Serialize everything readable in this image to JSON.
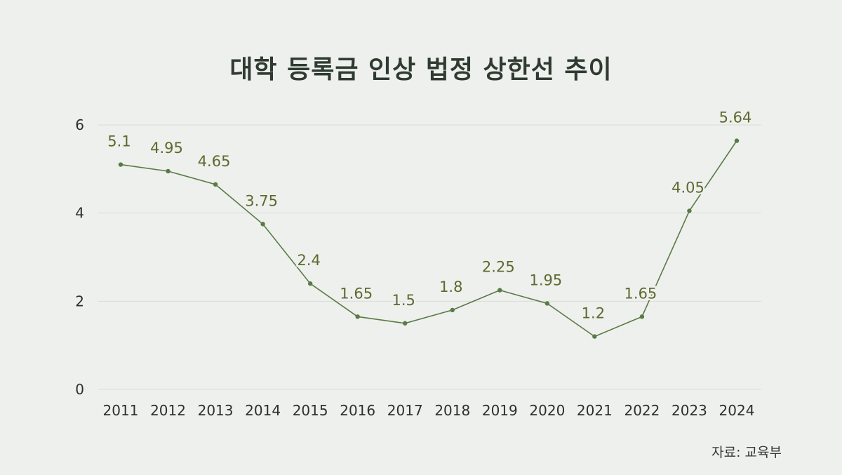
{
  "chart_data": {
    "type": "line",
    "title": "대학 등록금 인상 법정 상한선 추이",
    "categories": [
      "2011",
      "2012",
      "2013",
      "2014",
      "2015",
      "2016",
      "2017",
      "2018",
      "2019",
      "2020",
      "2021",
      "2022",
      "2023",
      "2024"
    ],
    "values": [
      5.1,
      4.95,
      4.65,
      3.75,
      2.4,
      1.65,
      1.5,
      1.8,
      2.25,
      1.95,
      1.2,
      1.65,
      4.05,
      5.64
    ],
    "data_labels": [
      "5.1",
      "4.95",
      "4.65",
      "3.75",
      "2.4",
      "1.65",
      "1.5",
      "1.8",
      "2.25",
      "1.95",
      "1.2",
      "1.65",
      "4.05",
      "5.64"
    ],
    "yticks": [
      "0",
      "2",
      "4",
      "6"
    ],
    "ylim": [
      0,
      6
    ],
    "grid": true,
    "legend": "none",
    "source": "자료: 교육부",
    "colors": {
      "line": "#5a7a46",
      "label": "#5a6b2e",
      "grid": "#d8dbd6",
      "tick": "#2b302b",
      "background": "#eef0ed"
    }
  }
}
